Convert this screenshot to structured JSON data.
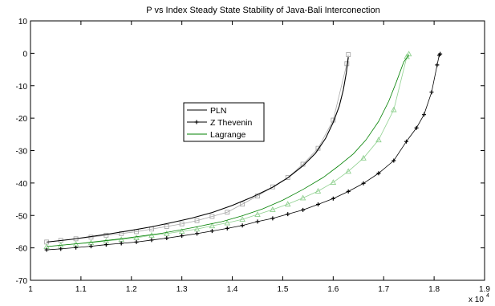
{
  "chart_data": {
    "type": "line",
    "title": "P vs Index Steady State Stability of Java-Bali Interconection",
    "xlabel": "",
    "ylabel": "",
    "x_multiplier_label": "x 10",
    "x_multiplier_exp": "4",
    "xlim": [
      1.0,
      1.9
    ],
    "ylim": [
      -70,
      10
    ],
    "x_tick_labels": [
      "1",
      "1.1",
      "1.2",
      "1.3",
      "1.4",
      "1.5",
      "1.6",
      "1.7",
      "1.8",
      "1.9"
    ],
    "y_tick_labels": [
      "10",
      "0",
      "-10",
      "-20",
      "-30",
      "-40",
      "-50",
      "-60",
      "-70"
    ],
    "x_ticks": [
      1.0,
      1.1,
      1.2,
      1.3,
      1.4,
      1.5,
      1.6,
      1.7,
      1.8,
      1.9
    ],
    "y_ticks": [
      10,
      0,
      -10,
      -20,
      -30,
      -40,
      -50,
      -60,
      -70
    ],
    "grid": false,
    "legend_position": "center-left",
    "series": [
      {
        "name": "PLN",
        "color": "#000000",
        "marker": "none",
        "x": [
          1.032,
          1.08,
          1.12,
          1.16,
          1.2,
          1.24,
          1.28,
          1.32,
          1.36,
          1.4,
          1.44,
          1.48,
          1.51,
          1.54,
          1.565,
          1.585,
          1.6,
          1.612,
          1.62,
          1.626,
          1.63
        ],
        "y": [
          -58.2,
          -57.4,
          -56.5,
          -55.6,
          -54.6,
          -53.5,
          -52.2,
          -50.8,
          -49.1,
          -46.9,
          -44.3,
          -41.3,
          -38.4,
          -34.7,
          -30.8,
          -26.2,
          -21.3,
          -16.3,
          -11.3,
          -6.0,
          -1.2
        ]
      },
      {
        "name": "Z Thevenin",
        "color": "#000000",
        "marker": "plus",
        "x": [
          1.032,
          1.06,
          1.09,
          1.12,
          1.15,
          1.18,
          1.21,
          1.24,
          1.27,
          1.3,
          1.33,
          1.36,
          1.39,
          1.42,
          1.45,
          1.48,
          1.51,
          1.54,
          1.57,
          1.6,
          1.63,
          1.66,
          1.69,
          1.72,
          1.745,
          1.765,
          1.78,
          1.795,
          1.806,
          1.81,
          1.812
        ],
        "y": [
          -60.6,
          -60.3,
          -59.9,
          -59.5,
          -59.0,
          -58.6,
          -58.2,
          -57.6,
          -57.0,
          -56.3,
          -55.6,
          -54.8,
          -54.0,
          -53.1,
          -51.9,
          -50.9,
          -49.6,
          -48.3,
          -46.6,
          -44.8,
          -42.6,
          -40.1,
          -37.0,
          -33.1,
          -27.2,
          -23.0,
          -18.9,
          -12.0,
          -3.6,
          -0.6,
          -0.2
        ]
      },
      {
        "name": "Lagrange",
        "color": "#008000",
        "marker": "none",
        "x": [
          1.032,
          1.1,
          1.18,
          1.26,
          1.32,
          1.38,
          1.42,
          1.46,
          1.5,
          1.54,
          1.58,
          1.61,
          1.64,
          1.665,
          1.69,
          1.71,
          1.725,
          1.74,
          1.75
        ],
        "y": [
          -59.6,
          -58.6,
          -57.2,
          -55.5,
          -53.8,
          -51.9,
          -50.1,
          -48.0,
          -45.3,
          -42.0,
          -38.3,
          -34.8,
          -31.0,
          -26.7,
          -21.0,
          -14.8,
          -8.9,
          -2.6,
          -0.6
        ]
      },
      {
        "name": "",
        "color": "#aaaaaa",
        "marker": "square",
        "x": [
          1.032,
          1.06,
          1.09,
          1.12,
          1.15,
          1.18,
          1.21,
          1.24,
          1.27,
          1.3,
          1.33,
          1.36,
          1.39,
          1.42,
          1.45,
          1.48,
          1.51,
          1.54,
          1.57,
          1.6,
          1.627,
          1.63
        ],
        "y": [
          -58.2,
          -57.7,
          -57.2,
          -56.7,
          -56.1,
          -55.6,
          -55.0,
          -54.2,
          -53.4,
          -52.6,
          -51.6,
          -50.3,
          -49.0,
          -46.5,
          -44.0,
          -41.2,
          -38.3,
          -34.2,
          -29.3,
          -20.6,
          -3.2,
          -0.4
        ]
      },
      {
        "name": "",
        "color": "#8fd08f",
        "marker": "triangle",
        "x": [
          1.032,
          1.06,
          1.09,
          1.12,
          1.15,
          1.18,
          1.21,
          1.24,
          1.27,
          1.3,
          1.33,
          1.36,
          1.39,
          1.42,
          1.45,
          1.48,
          1.51,
          1.54,
          1.57,
          1.6,
          1.63,
          1.66,
          1.69,
          1.72,
          1.746,
          1.75
        ],
        "y": [
          -59.6,
          -59.2,
          -58.8,
          -58.4,
          -57.9,
          -57.4,
          -56.9,
          -56.1,
          -55.6,
          -54.9,
          -54.2,
          -53.2,
          -52.3,
          -51.2,
          -49.7,
          -48.2,
          -46.5,
          -44.6,
          -42.5,
          -39.8,
          -36.4,
          -32.3,
          -26.7,
          -17.4,
          -1.0,
          -0.2
        ]
      }
    ]
  }
}
